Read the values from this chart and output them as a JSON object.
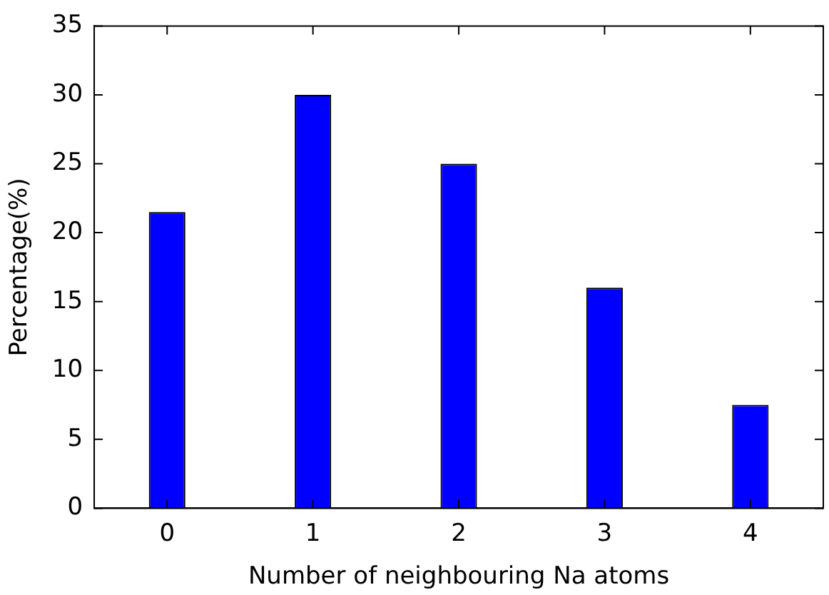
{
  "chart_data": {
    "type": "bar",
    "xlabel": "Number of neighbouring Na atoms",
    "ylabel": "Percentage(%)",
    "categories": [
      "0",
      "1",
      "2",
      "3",
      "4"
    ],
    "values": [
      21.5,
      30,
      25,
      16,
      7.5
    ],
    "color": "#0000ff",
    "ylim": [
      0,
      35
    ],
    "yticks": [
      0,
      5,
      10,
      15,
      20,
      25,
      30,
      35
    ],
    "grid": false,
    "legend": false
  }
}
